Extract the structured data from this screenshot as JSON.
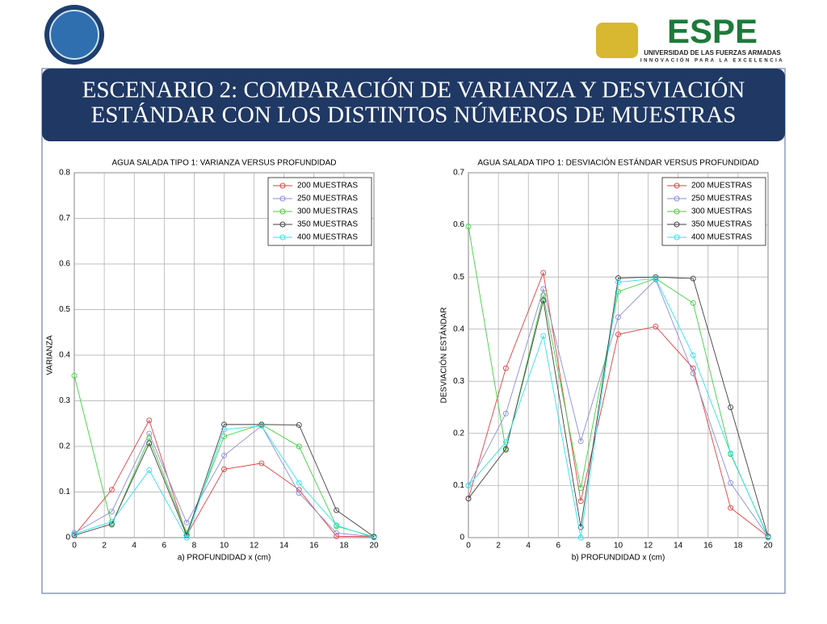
{
  "header": {
    "logo_text": "ESPE",
    "university": "UNIVERSIDAD DE LAS FUERZAS ARMADAS",
    "motto": "INNOVACIÓN PARA LA EXCELENCIA"
  },
  "title": [
    "ESCENARIO 2:  COMPARACIÓN  DE VARIANZA Y DESVIACIÓN",
    "ESTÁNDAR  CON LOS DISTINTOS NÚMEROS DE MUESTRAS"
  ],
  "chart_data": [
    {
      "type": "line",
      "title": "AGUA SALADA TIPO 1: VARIANZA VERSUS PROFUNDIDAD",
      "xlabel": "a) PROFUNDIDAD   x (cm)",
      "ylabel": "VARIANZA",
      "x": [
        0,
        2.5,
        5,
        7.5,
        10,
        12.5,
        15,
        17.5,
        20
      ],
      "xlim": [
        0,
        20
      ],
      "xticks": [
        0,
        2,
        4,
        6,
        8,
        10,
        12,
        14,
        16,
        18,
        20
      ],
      "ylim": [
        0,
        0.8
      ],
      "yticks": [
        0,
        0.1,
        0.2,
        0.3,
        0.4,
        0.5,
        0.6,
        0.7,
        0.8
      ],
      "grid": true,
      "legend": "upper right",
      "series": [
        {
          "name": "200 MUESTRAS",
          "color": "#e04040",
          "values": [
            0.005,
            0.105,
            0.257,
            0.005,
            0.15,
            0.163,
            0.105,
            0.003,
            0.002
          ]
        },
        {
          "name": "250 MUESTRAS",
          "color": "#8c8cdc",
          "values": [
            0.01,
            0.057,
            0.228,
            0.033,
            0.18,
            0.245,
            0.098,
            0.01,
            0.002
          ]
        },
        {
          "name": "300 MUESTRAS",
          "color": "#40d040",
          "values": [
            0.355,
            0.028,
            0.218,
            0.01,
            0.222,
            0.248,
            0.2,
            0.025,
            0.002
          ]
        },
        {
          "name": "350 MUESTRAS",
          "color": "#404040",
          "values": [
            0.005,
            0.03,
            0.207,
            0.005,
            0.248,
            0.248,
            0.247,
            0.06,
            0.002
          ]
        },
        {
          "name": "400 MUESTRAS",
          "color": "#30e0f0",
          "values": [
            0.008,
            0.035,
            0.148,
            0,
            0.237,
            0.245,
            0.12,
            0.027,
            0
          ]
        }
      ]
    },
    {
      "type": "line",
      "title": "AGUA SALADA TIPO 1: DESVIACIÓN ESTÁNDAR VERSUS PROFUNDIDAD",
      "xlabel": "b) PROFUNDIDAD   x (cm)",
      "ylabel": "DESVIACIÓN ESTÁNDAR",
      "x": [
        0,
        2.5,
        5,
        7.5,
        10,
        12.5,
        15,
        17.5,
        20
      ],
      "xlim": [
        0,
        20
      ],
      "xticks": [
        0,
        2,
        4,
        6,
        8,
        10,
        12,
        14,
        16,
        18,
        20
      ],
      "ylim": [
        0,
        0.7
      ],
      "yticks": [
        0,
        0.1,
        0.2,
        0.3,
        0.4,
        0.5,
        0.6,
        0.7
      ],
      "grid": true,
      "legend": "upper right",
      "series": [
        {
          "name": "200 MUESTRAS",
          "color": "#e04040",
          "values": [
            0.075,
            0.325,
            0.508,
            0.07,
            0.39,
            0.405,
            0.325,
            0.057,
            0.002
          ]
        },
        {
          "name": "250 MUESTRAS",
          "color": "#8c8cdc",
          "values": [
            0.1,
            0.238,
            0.477,
            0.185,
            0.423,
            0.495,
            0.315,
            0.105,
            0.002
          ]
        },
        {
          "name": "300 MUESTRAS",
          "color": "#40d040",
          "values": [
            0.597,
            0.168,
            0.465,
            0.095,
            0.472,
            0.497,
            0.45,
            0.16,
            0.002
          ]
        },
        {
          "name": "350 MUESTRAS",
          "color": "#404040",
          "values": [
            0.075,
            0.17,
            0.455,
            0.02,
            0.498,
            0.5,
            0.497,
            0.25,
            0.002
          ]
        },
        {
          "name": "400 MUESTRAS",
          "color": "#30e0f0",
          "values": [
            0.1,
            0.183,
            0.387,
            0,
            0.49,
            0.497,
            0.35,
            0.162,
            0
          ]
        }
      ]
    }
  ]
}
